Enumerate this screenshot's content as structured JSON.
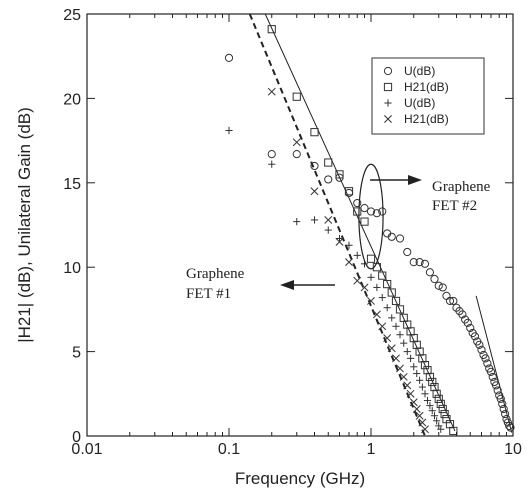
{
  "chart_data": {
    "type": "scatter",
    "xscale": "log",
    "xlim": [
      0.01,
      10
    ],
    "ylim": [
      0,
      25
    ],
    "xticks": [
      "0.01",
      "0.1",
      "1",
      "10"
    ],
    "yticks": [
      "0",
      "5",
      "10",
      "15",
      "20",
      "25"
    ],
    "xlabel": "Frequency (GHz)",
    "ylabel": "|H21| (dB), Unilateral Gain (dB)",
    "legend_position": "top-right",
    "legend": [
      {
        "marker": "circle",
        "label": "U(dB)"
      },
      {
        "marker": "square",
        "label": "H21(dB)"
      },
      {
        "marker": "plus",
        "label": "U(dB)"
      },
      {
        "marker": "cross",
        "label": "H21(dB)"
      }
    ],
    "annotations": [
      {
        "lines": [
          "Graphene",
          "FET #2"
        ],
        "arrow": "points-right",
        "near": {
          "x": 1.0,
          "y": 15.0
        }
      },
      {
        "lines": [
          "Graphene",
          "FET #1"
        ],
        "arrow": "points-left",
        "near": {
          "x": 0.9,
          "y": 9.0
        }
      }
    ],
    "series": [
      {
        "marker": "circle",
        "points": [
          [
            0.1,
            22.4
          ],
          [
            0.2,
            16.7
          ],
          [
            0.3,
            16.7
          ],
          [
            0.4,
            16.0
          ],
          [
            0.5,
            15.2
          ],
          [
            0.6,
            15.3
          ],
          [
            0.7,
            14.4
          ],
          [
            0.8,
            13.8
          ],
          [
            0.9,
            13.5
          ],
          [
            1.0,
            13.3
          ],
          [
            1.1,
            13.2
          ],
          [
            1.2,
            13.3
          ],
          [
            1.3,
            12.0
          ],
          [
            1.4,
            11.8
          ],
          [
            1.6,
            11.7
          ],
          [
            1.8,
            10.9
          ],
          [
            2.0,
            10.3
          ],
          [
            2.2,
            10.3
          ],
          [
            2.4,
            10.2
          ],
          [
            2.6,
            9.7
          ],
          [
            2.8,
            9.3
          ],
          [
            3.0,
            8.9
          ],
          [
            3.2,
            8.8
          ],
          [
            3.4,
            8.3
          ],
          [
            3.6,
            8.0
          ],
          [
            3.8,
            8.0
          ],
          [
            4.0,
            7.6
          ],
          [
            4.2,
            7.4
          ],
          [
            4.4,
            7.2
          ],
          [
            4.6,
            6.9
          ],
          [
            4.8,
            6.7
          ],
          [
            5.0,
            6.4
          ],
          [
            5.2,
            6.1
          ],
          [
            5.4,
            5.9
          ],
          [
            5.6,
            5.6
          ],
          [
            5.8,
            5.4
          ],
          [
            6.0,
            5.1
          ],
          [
            6.2,
            4.8
          ],
          [
            6.4,
            4.6
          ],
          [
            6.6,
            4.3
          ],
          [
            6.8,
            4.0
          ],
          [
            7.0,
            3.8
          ],
          [
            7.2,
            3.5
          ],
          [
            7.4,
            3.2
          ],
          [
            7.6,
            3.0
          ],
          [
            7.8,
            2.7
          ],
          [
            8.0,
            2.4
          ],
          [
            8.2,
            2.2
          ],
          [
            8.4,
            1.9
          ],
          [
            8.6,
            1.6
          ],
          [
            8.8,
            1.3
          ],
          [
            9.0,
            1.0
          ],
          [
            9.2,
            0.8
          ],
          [
            9.4,
            0.6
          ],
          [
            9.6,
            0.5
          ]
        ]
      },
      {
        "marker": "square",
        "points": [
          [
            0.2,
            24.1
          ],
          [
            0.3,
            20.1
          ],
          [
            0.4,
            18.0
          ],
          [
            0.5,
            16.2
          ],
          [
            0.6,
            15.5
          ],
          [
            0.7,
            14.5
          ],
          [
            0.8,
            13.3
          ],
          [
            0.9,
            12.7
          ],
          [
            1.0,
            10.5
          ],
          [
            1.1,
            10.0
          ],
          [
            1.2,
            9.5
          ],
          [
            1.3,
            9.0
          ],
          [
            1.4,
            8.5
          ],
          [
            1.5,
            8.0
          ],
          [
            1.6,
            7.5
          ],
          [
            1.7,
            7.0
          ],
          [
            1.8,
            6.6
          ],
          [
            1.9,
            6.2
          ],
          [
            2.0,
            5.8
          ],
          [
            2.1,
            5.4
          ],
          [
            2.2,
            5.0
          ],
          [
            2.3,
            4.6
          ],
          [
            2.4,
            4.2
          ],
          [
            2.5,
            3.9
          ],
          [
            2.6,
            3.5
          ],
          [
            2.7,
            3.2
          ],
          [
            2.8,
            2.9
          ],
          [
            2.9,
            2.5
          ],
          [
            3.0,
            2.2
          ],
          [
            3.1,
            1.9
          ],
          [
            3.2,
            1.6
          ],
          [
            3.3,
            1.3
          ],
          [
            3.4,
            1.0
          ],
          [
            3.6,
            0.7
          ],
          [
            3.8,
            0.3
          ]
        ]
      },
      {
        "marker": "plus",
        "points": [
          [
            0.1,
            18.1
          ],
          [
            0.2,
            16.1
          ],
          [
            0.3,
            12.7
          ],
          [
            0.4,
            12.8
          ],
          [
            0.5,
            12.2
          ],
          [
            0.6,
            11.7
          ],
          [
            0.7,
            11.3
          ],
          [
            0.8,
            10.7
          ],
          [
            0.9,
            10.2
          ],
          [
            1.0,
            9.4
          ],
          [
            1.1,
            8.8
          ],
          [
            1.2,
            8.2
          ],
          [
            1.3,
            7.6
          ],
          [
            1.4,
            7.0
          ],
          [
            1.5,
            6.5
          ],
          [
            1.6,
            6.0
          ],
          [
            1.7,
            5.5
          ],
          [
            1.8,
            5.0
          ],
          [
            1.9,
            4.6
          ],
          [
            2.0,
            4.1
          ],
          [
            2.1,
            3.7
          ],
          [
            2.2,
            3.3
          ],
          [
            2.3,
            2.9
          ],
          [
            2.4,
            2.5
          ],
          [
            2.5,
            2.1
          ],
          [
            2.6,
            1.8
          ],
          [
            2.7,
            1.5
          ],
          [
            2.8,
            1.2
          ],
          [
            2.9,
            0.9
          ],
          [
            3.0,
            0.6
          ],
          [
            3.1,
            0.4
          ]
        ]
      },
      {
        "marker": "cross",
        "points": [
          [
            0.2,
            20.4
          ],
          [
            0.3,
            17.4
          ],
          [
            0.4,
            14.5
          ],
          [
            0.5,
            12.8
          ],
          [
            0.6,
            11.5
          ],
          [
            0.7,
            10.3
          ],
          [
            0.8,
            9.2
          ],
          [
            0.9,
            8.8
          ],
          [
            1.0,
            8.0
          ],
          [
            1.1,
            7.2
          ],
          [
            1.2,
            6.5
          ],
          [
            1.3,
            5.8
          ],
          [
            1.4,
            5.2
          ],
          [
            1.5,
            4.6
          ],
          [
            1.6,
            4.0
          ],
          [
            1.7,
            3.5
          ],
          [
            1.8,
            3.0
          ],
          [
            1.9,
            2.5
          ],
          [
            2.0,
            2.0
          ],
          [
            2.1,
            1.6
          ],
          [
            2.2,
            1.2
          ],
          [
            2.3,
            0.8
          ],
          [
            2.4,
            0.4
          ]
        ]
      }
    ],
    "fit_lines": [
      {
        "style": "solid",
        "from": [
          0.18,
          25.0
        ],
        "to": [
          3.9,
          0.3
        ]
      },
      {
        "style": "dashed",
        "from": [
          0.14,
          25.0
        ],
        "to": [
          2.4,
          0.0
        ]
      },
      {
        "style": "solid",
        "from": [
          5.5,
          8.3
        ],
        "to": [
          9.8,
          0.2
        ]
      }
    ],
    "ellipse": {
      "cx": 1.0,
      "cy": 13.0,
      "rx_decades": 0.085,
      "ry": 3.1
    }
  }
}
